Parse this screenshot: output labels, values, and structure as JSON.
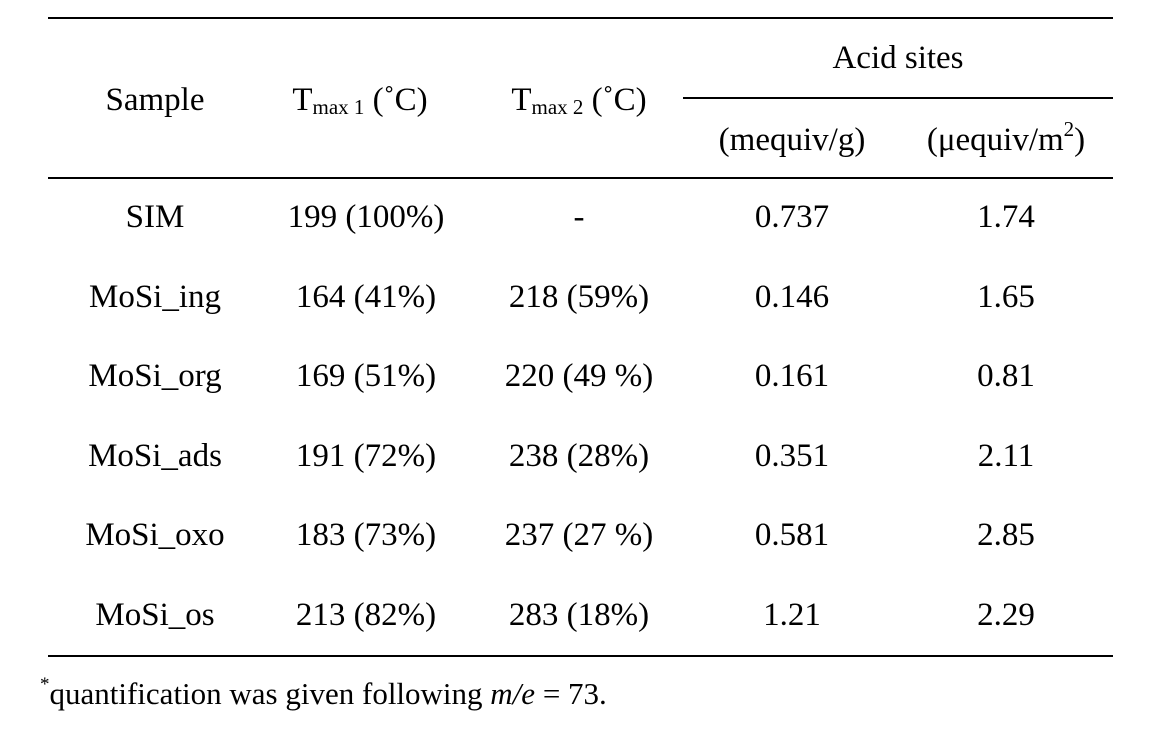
{
  "table": {
    "headers": {
      "sample": "Sample",
      "tmax1": {
        "main": "T",
        "sub": "max 1",
        "unit": " (˚C)"
      },
      "tmax2": {
        "main": "T",
        "sub": "max 2",
        "unit": " (˚C)"
      },
      "acid_sites": "Acid sites",
      "acid_unit_g": "(mequiv/g)",
      "acid_unit_m2": {
        "main": "(μequiv/m",
        "sup": "2",
        "close": ")"
      }
    },
    "rows": [
      {
        "sample": "SIM",
        "tmax1": "199 (100%)",
        "tmax2": "-",
        "acid_g": "0.737",
        "acid_m2": "1.74"
      },
      {
        "sample": "MoSi_ing",
        "tmax1": "164 (41%)",
        "tmax2": "218 (59%)",
        "acid_g": "0.146",
        "acid_m2": "1.65"
      },
      {
        "sample": "MoSi_org",
        "tmax1": "169 (51%)",
        "tmax2": "220 (49 %)",
        "acid_g": "0.161",
        "acid_m2": "0.81"
      },
      {
        "sample": "MoSi_ads",
        "tmax1": "191 (72%)",
        "tmax2": "238 (28%)",
        "acid_g": "0.351",
        "acid_m2": "2.11"
      },
      {
        "sample": "MoSi_oxo",
        "tmax1": "183 (73%)",
        "tmax2": "237 (27 %)",
        "acid_g": "0.581",
        "acid_m2": "2.85"
      },
      {
        "sample": "MoSi_os",
        "tmax1": "213 (82%)",
        "tmax2": "283 (18%)",
        "acid_g": "1.21",
        "acid_m2": "2.29"
      }
    ]
  },
  "footnote": {
    "marker": "*",
    "text_before": "quantification was given following ",
    "italic": "m/e",
    "text_after": " = 73."
  }
}
